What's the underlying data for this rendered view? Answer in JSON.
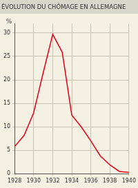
{
  "chart_data": {
    "type": "line",
    "title": "ÉVOLUTION DU CHÔMAGE EN ALLEMAGNE",
    "y_label": "%",
    "x": [
      1928,
      1929,
      1930,
      1931,
      1932,
      1933,
      1934,
      1935,
      1936,
      1937,
      1938,
      1939,
      1940
    ],
    "values": [
      5.8,
      8.2,
      13.0,
      21.5,
      29.7,
      25.9,
      12.5,
      10.0,
      7.0,
      3.8,
      1.9,
      0.5,
      0.3
    ],
    "color": "#e3001b",
    "xlim": [
      1928,
      1940
    ],
    "xticks": [
      1928,
      1930,
      1932,
      1934,
      1936,
      1938,
      1940
    ],
    "ylim": [
      0,
      32
    ],
    "yticks": [
      0,
      5,
      10,
      15,
      20,
      25,
      30
    ],
    "grid": true
  }
}
